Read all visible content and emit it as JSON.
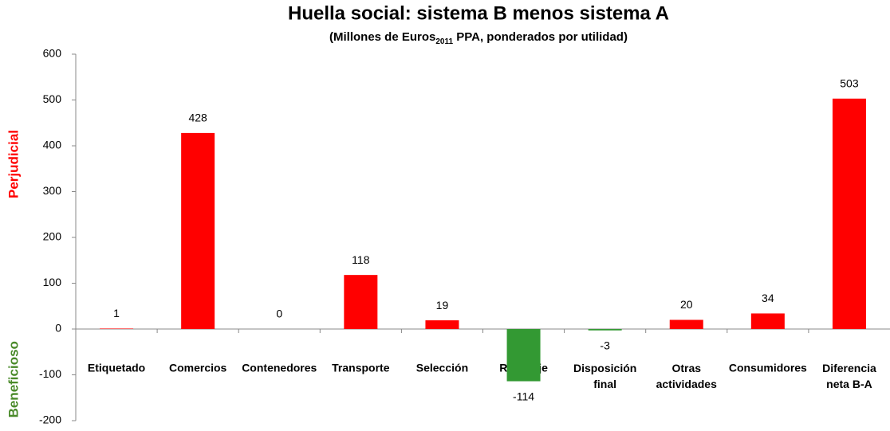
{
  "chart_data": {
    "type": "bar",
    "title": "Huella social: sistema B menos sistema A",
    "subtitle": [
      "(Millones de Euros",
      "2011",
      " PPA, ponderados por utilidad)"
    ],
    "y_labels": [
      {
        "text": "Perjudicial",
        "color": "#ff0000"
      },
      {
        "text": "Beneficioso",
        "color": "#4a8a2a"
      }
    ],
    "categories": [
      "Etiquetado",
      "Comercios",
      "Contenedores",
      "Transporte",
      "Selección",
      "Reciclaje",
      "Disposición\nfinal",
      "Otras\nactividades",
      "Consumidores",
      "Diferencia\nneta B-A"
    ],
    "values": [
      1,
      428,
      0,
      118,
      19,
      -114,
      -3,
      20,
      34,
      503
    ],
    "positive_color": "#ff0000",
    "negative_color": "#339933",
    "ylim": [
      -200,
      600
    ],
    "yticks": [
      -200,
      -100,
      0,
      100,
      200,
      300,
      400,
      500,
      600
    ],
    "grid": false
  }
}
